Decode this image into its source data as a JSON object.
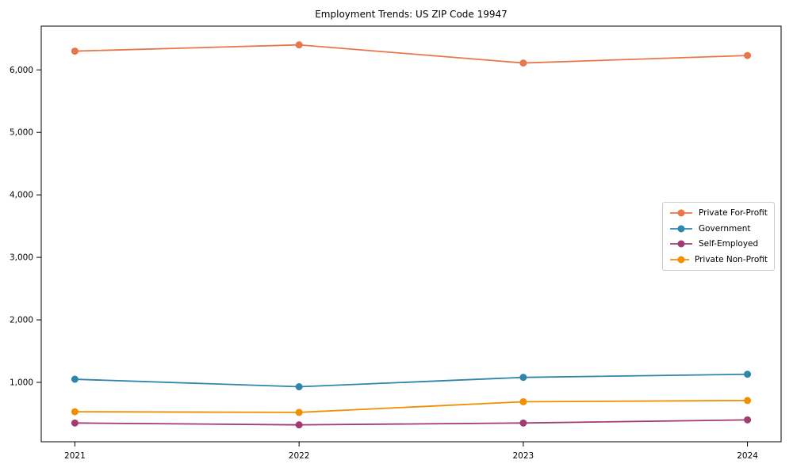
{
  "chart_data": {
    "type": "line",
    "title": "Employment Trends: US ZIP Code 19947",
    "categories": [
      "2021",
      "2022",
      "2023",
      "2024"
    ],
    "series": [
      {
        "name": "Private For-Profit",
        "color": "#E8764B",
        "values": [
          6300,
          6400,
          6110,
          6230
        ]
      },
      {
        "name": "Government",
        "color": "#2E86AB",
        "values": [
          1050,
          930,
          1080,
          1130
        ]
      },
      {
        "name": "Self-Employed",
        "color": "#A23B72",
        "values": [
          350,
          320,
          350,
          400
        ]
      },
      {
        "name": "Private Non-Profit",
        "color": "#F18F01",
        "values": [
          530,
          520,
          690,
          710
        ]
      }
    ],
    "xlabel": "",
    "ylabel": "",
    "ylim": [
      50,
      6700
    ],
    "yticks": [
      1000,
      2000,
      3000,
      4000,
      5000,
      6000
    ],
    "ytick_labels": [
      "1,000",
      "2,000",
      "3,000",
      "4,000",
      "5,000",
      "6,000"
    ],
    "grid": false,
    "legend_position": "right-inside",
    "marker": "circle",
    "axis_color": "#000000",
    "background_color": "#ffffff"
  }
}
